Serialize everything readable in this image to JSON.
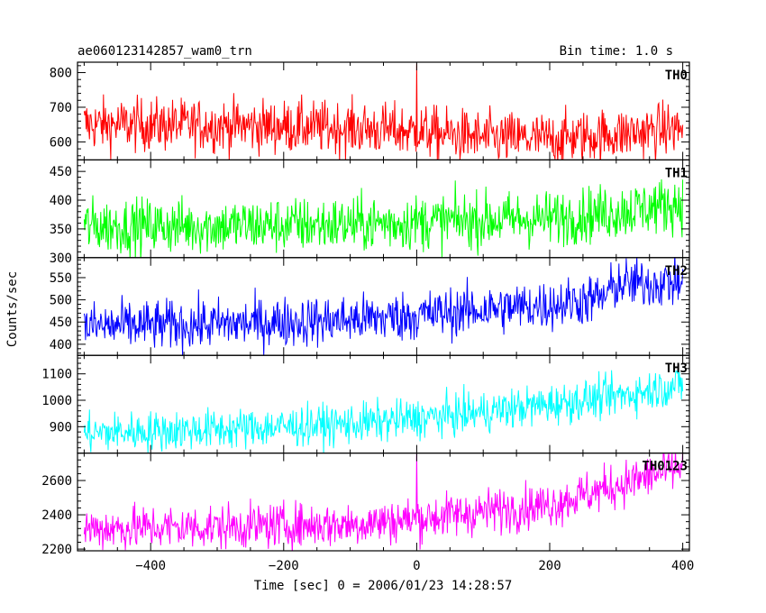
{
  "header": {
    "left_title": "ae060123142857_wam0_trn",
    "right_title": "Bin time: 1.0 s"
  },
  "chart_data": {
    "type": "line",
    "xlabel": "Time [sec] 0 = 2006/01/23 14:28:57",
    "ylabel": "Counts/sec",
    "xlim": [
      -510,
      410
    ],
    "x_ticks": [
      -400,
      -200,
      0,
      200,
      400
    ],
    "x_tick_labels": [
      "−400",
      "−200",
      "0",
      "200",
      "400"
    ],
    "series": [
      {
        "name": "TH0",
        "color": "#ff0000",
        "ylim": [
          548,
          830
        ],
        "y_ticks": [
          600,
          700,
          800
        ],
        "trend": [
          [
            -500,
            650
          ],
          [
            -300,
            648
          ],
          [
            -100,
            640
          ],
          [
            0,
            630
          ],
          [
            100,
            612
          ],
          [
            200,
            608
          ],
          [
            300,
            622
          ],
          [
            400,
            640
          ]
        ],
        "noise": 38,
        "spikes": [
          [
            0,
            825
          ]
        ]
      },
      {
        "name": "TH1",
        "color": "#00ff00",
        "ylim": [
          300,
          470
        ],
        "y_ticks": [
          300,
          350,
          400,
          450
        ],
        "trend": [
          [
            -500,
            355
          ],
          [
            -300,
            355
          ],
          [
            -100,
            358
          ],
          [
            0,
            362
          ],
          [
            100,
            365
          ],
          [
            200,
            368
          ],
          [
            300,
            380
          ],
          [
            400,
            395
          ]
        ],
        "noise": 24,
        "spikes": []
      },
      {
        "name": "TH2",
        "color": "#0000ff",
        "ylim": [
          375,
          595
        ],
        "y_ticks": [
          400,
          450,
          500,
          550
        ],
        "trend": [
          [
            -500,
            440
          ],
          [
            -300,
            445
          ],
          [
            -100,
            455
          ],
          [
            0,
            465
          ],
          [
            100,
            478
          ],
          [
            200,
            488
          ],
          [
            280,
            505
          ],
          [
            300,
            535
          ],
          [
            400,
            540
          ]
        ],
        "noise": 28,
        "spikes": []
      },
      {
        "name": "TH3",
        "color": "#00ffff",
        "ylim": [
          800,
          1170
        ],
        "y_ticks": [
          900,
          1000,
          1100
        ],
        "trend": [
          [
            -500,
            875
          ],
          [
            -300,
            890
          ],
          [
            -100,
            910
          ],
          [
            0,
            930
          ],
          [
            100,
            955
          ],
          [
            200,
            985
          ],
          [
            300,
            1015
          ],
          [
            400,
            1060
          ]
        ],
        "noise": 38,
        "spikes": []
      },
      {
        "name": "TH0123",
        "color": "#ff00ff",
        "ylim": [
          2190,
          2760
        ],
        "y_ticks": [
          2200,
          2400,
          2600
        ],
        "trend": [
          [
            -500,
            2320
          ],
          [
            -300,
            2330
          ],
          [
            -100,
            2345
          ],
          [
            0,
            2375
          ],
          [
            100,
            2420
          ],
          [
            200,
            2460
          ],
          [
            300,
            2570
          ],
          [
            400,
            2680
          ]
        ],
        "noise": 65,
        "spikes": [
          [
            0,
            2755
          ]
        ]
      }
    ]
  }
}
